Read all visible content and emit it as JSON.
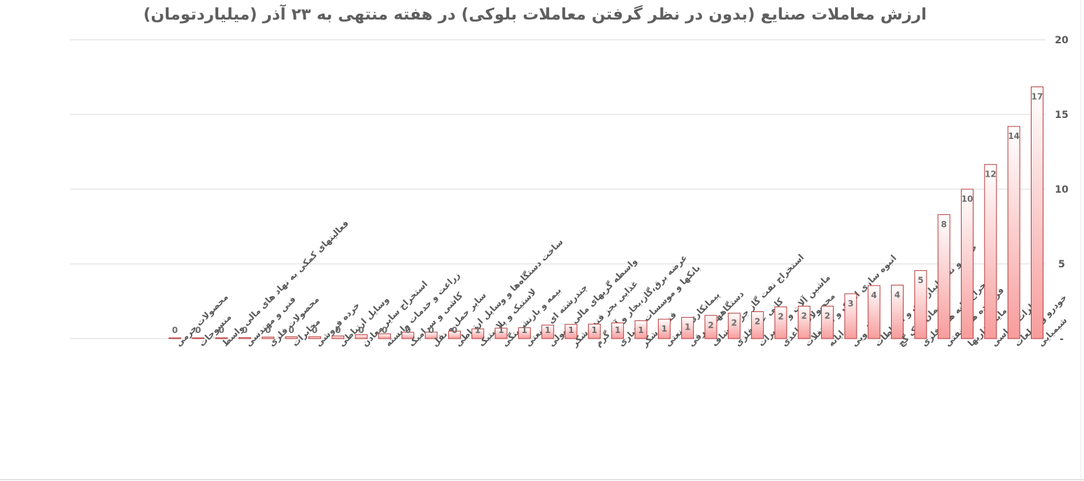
{
  "chart_data": {
    "type": "bar",
    "title": "ارزش معاملات صنایع (بدون در نظر گرفتن معاملات بلوکی) در هفته منتهی به ۲۳ آذر (میلیاردتومان)",
    "xlabel": "",
    "ylabel": "",
    "ylim": [
      0,
      20
    ],
    "yticks": [
      0,
      5,
      10,
      15,
      20
    ],
    "ytick_labels": [
      "-",
      "5",
      "10",
      "15",
      "20"
    ],
    "y_axis_side": "right",
    "grid": true,
    "legend": "none",
    "colors": {
      "bar_fill_top": "#ffffff",
      "bar_fill_bottom": "#f79c9c",
      "bar_stroke": "#b73b3b",
      "label": "#6d6d6d",
      "grid": "#d9d9d9"
    },
    "categories": [
      "محصولات چرمی",
      "منسوجات",
      "فعالیتهای کمکی به نهاد های مالی واسط",
      "فنی و مهندسی",
      "محصولات فلزی",
      "مخابرات",
      "خرده فروشی",
      "وسایل ارتباطی",
      "استخراج سایر معادن",
      "زراعت و خدمات وابسته",
      "کاشی و سرامیک",
      "سایر حمل و نقل",
      "ساخت دستگاه‌ها و وسایل ارتباطی",
      "لاستیک و پلاستیک",
      "بیمه و بازنشستگی",
      "چندرشته ای صنعتی",
      "واسطه گریهای مالی و پولی",
      "غذایی بجز قند وشکر",
      "عرضه برق،گاز،بخار و آب گرم",
      "بانکها و موسسات اعتباری",
      "قند و شکر",
      "پیمانکاری صنعتی",
      "دستگاههای برقی",
      "استخراج نفت گاز جز اکتشاف",
      "کانی غیر فلزی",
      "ماشین آلات و تجهیزات",
      "محصولات کاغذی",
      "انبوه سازی املاک و مستغلات",
      "رایانه",
      "دارویی",
      "حمل و نقل انبارداری و ارتباطات",
      "سیمان آهک گچ",
      "استخراج کانه های فلزی",
      "فرآورده های نفتی",
      "سرمایه گذاریها",
      "فلزات اساسی",
      "خودرو و قطعات",
      "شیمیایی"
    ],
    "values": [
      0.04,
      0.04,
      0.05,
      0.06,
      0.1,
      0.12,
      0.13,
      0.18,
      0.26,
      0.32,
      0.42,
      0.43,
      0.5,
      0.65,
      0.7,
      0.73,
      0.9,
      0.95,
      0.97,
      1.05,
      1.2,
      1.3,
      1.42,
      1.55,
      1.7,
      1.8,
      2.12,
      2.17,
      2.17,
      3.0,
      3.55,
      3.58,
      4.55,
      8.3,
      10.0,
      11.65,
      14.2,
      16.85
    ],
    "data_labels": [
      "0",
      "0",
      "0",
      "0",
      "0",
      "0",
      "0",
      "0",
      "0",
      "0",
      "0",
      "0",
      "0",
      "1",
      "1",
      "1",
      "1",
      "1",
      "1",
      "1",
      "1",
      "1",
      "1",
      "2",
      "2",
      "2",
      "2",
      "2",
      "2",
      "3",
      "4",
      "4",
      "5",
      "8",
      "10",
      "12",
      "14",
      "17"
    ]
  }
}
